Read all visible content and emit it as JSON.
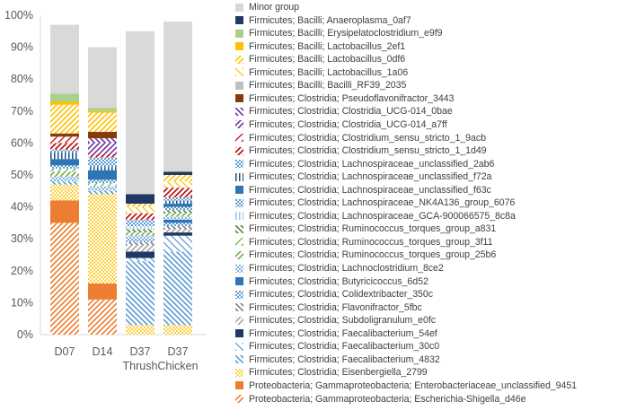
{
  "chart_data": {
    "type": "bar",
    "stacked": true,
    "categories": [
      "D07",
      "D14",
      "D37\nThrush",
      "D37\nChicken"
    ],
    "ylim": [
      0,
      100
    ],
    "yticks": [
      0,
      10,
      20,
      30,
      40,
      50,
      60,
      70,
      80,
      90,
      100
    ],
    "ytick_suffix": "%",
    "grid": false,
    "legend_position": "right",
    "series": [
      {
        "name": "Proteobacteria; Gammaproteobacteria; Escherichia-Shigella_d46e",
        "color": "#ED7D31",
        "pattern": "diag-up",
        "values": [
          35.0,
          11.0,
          0.0,
          0.0
        ]
      },
      {
        "name": "Proteobacteria; Gammaproteobacteria; Enterobacteriaceae_unclassified_9451",
        "color": "#ED7D31",
        "pattern": "solid",
        "values": [
          7.0,
          5.0,
          0.0,
          0.0
        ]
      },
      {
        "name": "Firmicutes; Clostridia; Eisenbergiella_2799",
        "color": "#FFC000",
        "pattern": "dots",
        "values": [
          5.0,
          28.0,
          3.0,
          3.0
        ]
      },
      {
        "name": "Firmicutes; Clostridia; Faecalibacterium_4832",
        "color": "#5B9BD5",
        "pattern": "diag-down",
        "values": [
          1.0,
          1.0,
          20.0,
          23.0
        ]
      },
      {
        "name": "Firmicutes; Clostridia; Faecalibacterium_30c0",
        "color": "#5B9BD5",
        "pattern": "diag-down-sparse",
        "values": [
          0.0,
          0.0,
          1.0,
          5.0
        ]
      },
      {
        "name": "Firmicutes; Clostridia; Faecalibacterium_54ef",
        "color": "#1F3864",
        "pattern": "solid",
        "values": [
          0.0,
          0.0,
          2.0,
          1.0
        ]
      },
      {
        "name": "Firmicutes; Clostridia; Subdoligranulum_e0fc",
        "color": "#A5A5A5",
        "pattern": "diag-up",
        "values": [
          0.0,
          0.0,
          2.0,
          1.0
        ]
      },
      {
        "name": "Firmicutes; Clostridia; Flavonifractor_5fbc",
        "color": "#7F7F7F",
        "pattern": "diag-down",
        "values": [
          0.0,
          0.0,
          1.0,
          1.0
        ]
      },
      {
        "name": "Firmicutes; Clostridia; Colidextribacter_350c",
        "color": "#5B9BD5",
        "pattern": "checker",
        "values": [
          0.0,
          0.0,
          1.0,
          1.0
        ]
      },
      {
        "name": "Firmicutes; Clostridia; Butyricicoccus_6d52",
        "color": "#2E75B6",
        "pattern": "solid",
        "values": [
          0.0,
          0.0,
          0.0,
          1.0
        ]
      },
      {
        "name": "Firmicutes; Clostridia; Lachnoclostridium_8ce2",
        "color": "#5B9BD5",
        "pattern": "dots",
        "values": [
          1.5,
          1.5,
          1.0,
          1.0
        ]
      },
      {
        "name": "Firmicutes; Clostridia; Ruminococcus_torques_group_25b6",
        "color": "#70AD47",
        "pattern": "diag-up",
        "values": [
          1.5,
          0.0,
          1.0,
          1.0
        ]
      },
      {
        "name": "Firmicutes; Clostridia; Ruminococcus_torques_group_3f11",
        "color": "#70AD47",
        "pattern": "diag-up-sparse",
        "values": [
          1.0,
          1.0,
          0.0,
          0.0
        ]
      },
      {
        "name": "Firmicutes; Clostridia; Ruminococcus_torques_group_a831",
        "color": "#548235",
        "pattern": "diag-down",
        "values": [
          0.0,
          0.0,
          1.0,
          1.0
        ]
      },
      {
        "name": "Firmicutes; Clostridia; Lachnospiraceae_GCA-900066575_8c8a",
        "color": "#9DC3E6",
        "pattern": "vlines",
        "values": [
          0.0,
          0.0,
          1.0,
          0.0
        ]
      },
      {
        "name": "Firmicutes; Clostridia; Lachnospiraceae_NK4A136_group_6076",
        "color": "#5B9BD5",
        "pattern": "checker",
        "values": [
          1.0,
          1.0,
          1.0,
          1.0
        ]
      },
      {
        "name": "Firmicutes; Clostridia; Lachnospiraceae_unclassified_f63c",
        "color": "#2E75B6",
        "pattern": "solid",
        "values": [
          2.0,
          3.0,
          0.0,
          1.0
        ]
      },
      {
        "name": "Firmicutes; Clostridia; Lachnospiraceae_unclassified_f72a",
        "color": "#1F4E79",
        "pattern": "vlines",
        "values": [
          2.0,
          1.0,
          0.0,
          1.0
        ]
      },
      {
        "name": "Firmicutes; Clostridia; Lachnospiraceae_unclassified_2ab6",
        "color": "#5B9BD5",
        "pattern": "checker",
        "values": [
          1.0,
          3.0,
          1.0,
          1.0
        ]
      },
      {
        "name": "Firmicutes; Clostridia; Clostridium_sensu_stricto_1_1d49",
        "color": "#C00000",
        "pattern": "diag-up",
        "values": [
          2.0,
          1.0,
          2.0,
          3.0
        ]
      },
      {
        "name": "Firmicutes; Clostridia; Clostridium_sensu_stricto_1_9acb",
        "color": "#C00000",
        "pattern": "diag-up-sparse",
        "values": [
          2.0,
          0.0,
          0.0,
          0.0
        ]
      },
      {
        "name": "Firmicutes; Clostridia; Clostridia_UCG-014_a7ff",
        "color": "#7030A0",
        "pattern": "diag-up",
        "values": [
          0.0,
          3.5,
          0.0,
          0.0
        ]
      },
      {
        "name": "Firmicutes; Clostridia; Clostridia_UCG-014_0bae",
        "color": "#7030A0",
        "pattern": "diag-down",
        "values": [
          0.0,
          1.5,
          0.0,
          0.0
        ]
      },
      {
        "name": "Firmicutes; Clostridia; Pseudoflavonifractor_3443",
        "color": "#843C0C",
        "pattern": "solid",
        "values": [
          1.0,
          2.0,
          0.0,
          0.0
        ]
      },
      {
        "name": "Firmicutes; Bacilli; Bacilli_RF39_2035",
        "color": "#BFBFBF",
        "pattern": "solid",
        "values": [
          0.0,
          0.0,
          0.0,
          0.0
        ]
      },
      {
        "name": "Firmicutes; Bacilli; Lactobacillus_1a06",
        "color": "#FFC000",
        "pattern": "diag-down-sparse",
        "values": [
          0.0,
          0.0,
          2.0,
          2.0
        ]
      },
      {
        "name": "Firmicutes; Bacilli; Lactobacillus_0df6",
        "color": "#FFC000",
        "pattern": "diag-up",
        "values": [
          9.0,
          6.0,
          1.0,
          2.0
        ]
      },
      {
        "name": "Firmicutes; Bacilli; Lactobacillus_2ef1",
        "color": "#FFC000",
        "pattern": "solid",
        "values": [
          1.0,
          0.5,
          0.0,
          0.0
        ]
      },
      {
        "name": "Firmicutes; Bacilli; Erysipelatoclostridium_e9f9",
        "color": "#A9D18E",
        "pattern": "solid",
        "values": [
          2.5,
          1.0,
          0.0,
          0.0
        ]
      },
      {
        "name": "Firmicutes; Bacilli; Anaeroplasma_0af7",
        "color": "#1F3864",
        "pattern": "solid",
        "values": [
          0.0,
          0.0,
          3.0,
          1.0
        ]
      },
      {
        "name": "Minor group",
        "color": "#D9D9D9",
        "pattern": "solid",
        "values": [
          21.5,
          19.0,
          51.0,
          47.0
        ]
      }
    ]
  }
}
